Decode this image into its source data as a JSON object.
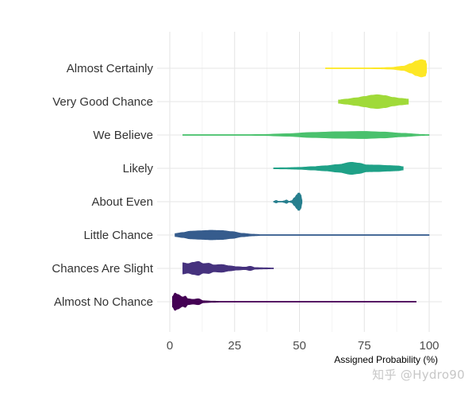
{
  "chart_data": {
    "type": "violin",
    "xlabel": "Assigned Probability (%)",
    "ylabel": "",
    "title": "",
    "xlim": [
      0,
      100
    ],
    "x_ticks": [
      0,
      25,
      50,
      75,
      100
    ],
    "grid": true,
    "legend": "none",
    "categories": [
      "Almost Certainly",
      "Very Good Chance",
      "We Believe",
      "Likely",
      "About Even",
      "Little Chance",
      "Chances Are Slight",
      "Almost No Chance"
    ],
    "series": [
      {
        "category": "Almost Certainly",
        "color": "#fde725",
        "min": 60,
        "max": 99,
        "density": [
          [
            60,
            0.02
          ],
          [
            70,
            0.03
          ],
          [
            80,
            0.06
          ],
          [
            85,
            0.1
          ],
          [
            90,
            0.25
          ],
          [
            93,
            0.55
          ],
          [
            95,
            0.85
          ],
          [
            97,
            1.0
          ],
          [
            98.5,
            0.9
          ],
          [
            99,
            0.5
          ]
        ]
      },
      {
        "category": "Very Good Chance",
        "color": "#a0da39",
        "min": 65,
        "max": 92,
        "density": [
          [
            65,
            0.2
          ],
          [
            68,
            0.3
          ],
          [
            72,
            0.45
          ],
          [
            75,
            0.6
          ],
          [
            78,
            0.75
          ],
          [
            80,
            0.8
          ],
          [
            83,
            0.7
          ],
          [
            86,
            0.5
          ],
          [
            89,
            0.38
          ],
          [
            92,
            0.3
          ]
        ]
      },
      {
        "category": "We Believe",
        "color": "#4ac16d",
        "min": 5,
        "max": 100,
        "density": [
          [
            5,
            0.03
          ],
          [
            20,
            0.04
          ],
          [
            35,
            0.06
          ],
          [
            45,
            0.15
          ],
          [
            55,
            0.3
          ],
          [
            65,
            0.38
          ],
          [
            75,
            0.42
          ],
          [
            82,
            0.35
          ],
          [
            90,
            0.2
          ],
          [
            97,
            0.08
          ],
          [
            100,
            0.03
          ]
        ]
      },
      {
        "category": "Likely",
        "color": "#1fa187",
        "min": 40,
        "max": 90,
        "density": [
          [
            40,
            0.06
          ],
          [
            45,
            0.08
          ],
          [
            50,
            0.12
          ],
          [
            55,
            0.2
          ],
          [
            60,
            0.3
          ],
          [
            65,
            0.45
          ],
          [
            70,
            0.7
          ],
          [
            73,
            0.6
          ],
          [
            76,
            0.4
          ],
          [
            80,
            0.38
          ],
          [
            85,
            0.32
          ],
          [
            88,
            0.28
          ],
          [
            90,
            0.2
          ]
        ]
      },
      {
        "category": "About Even",
        "color": "#277f8e",
        "min": 40,
        "max": 51,
        "density": [
          [
            40,
            0.05
          ],
          [
            41,
            0.15
          ],
          [
            42,
            0.05
          ],
          [
            43,
            0.03
          ],
          [
            44,
            0.1
          ],
          [
            45,
            0.2
          ],
          [
            46,
            0.05
          ],
          [
            47,
            0.12
          ],
          [
            48,
            0.45
          ],
          [
            49,
            0.8
          ],
          [
            49.5,
            1.0
          ],
          [
            50,
            1.0
          ],
          [
            50.5,
            0.8
          ],
          [
            51,
            0.2
          ]
        ]
      },
      {
        "category": "Little Chance",
        "color": "#365c8d",
        "min": 2,
        "max": 100,
        "density": [
          [
            2,
            0.18
          ],
          [
            5,
            0.3
          ],
          [
            8,
            0.45
          ],
          [
            12,
            0.5
          ],
          [
            16,
            0.55
          ],
          [
            20,
            0.52
          ],
          [
            24,
            0.4
          ],
          [
            28,
            0.2
          ],
          [
            32,
            0.1
          ],
          [
            36,
            0.04
          ],
          [
            45,
            0.03
          ],
          [
            60,
            0.02
          ],
          [
            80,
            0.02
          ],
          [
            100,
            0.02
          ]
        ]
      },
      {
        "category": "Chances Are Slight",
        "color": "#46327e",
        "min": 5,
        "max": 40,
        "density": [
          [
            5,
            0.65
          ],
          [
            7,
            0.55
          ],
          [
            9,
            0.7
          ],
          [
            11,
            0.8
          ],
          [
            13,
            0.55
          ],
          [
            15,
            0.6
          ],
          [
            17,
            0.4
          ],
          [
            20,
            0.45
          ],
          [
            23,
            0.3
          ],
          [
            26,
            0.2
          ],
          [
            29,
            0.15
          ],
          [
            31,
            0.25
          ],
          [
            33,
            0.1
          ],
          [
            36,
            0.08
          ],
          [
            40,
            0.05
          ]
        ]
      },
      {
        "category": "Almost No Chance",
        "color": "#440154",
        "min": 1,
        "max": 95,
        "density": [
          [
            1,
            0.6
          ],
          [
            2,
            1.0
          ],
          [
            3,
            0.85
          ],
          [
            5,
            0.55
          ],
          [
            6,
            0.65
          ],
          [
            7,
            0.35
          ],
          [
            9,
            0.28
          ],
          [
            11,
            0.35
          ],
          [
            13,
            0.12
          ],
          [
            16,
            0.08
          ],
          [
            20,
            0.05
          ],
          [
            30,
            0.03
          ],
          [
            50,
            0.02
          ],
          [
            70,
            0.02
          ],
          [
            90,
            0.03
          ],
          [
            95,
            0.03
          ]
        ]
      }
    ]
  },
  "watermark": "知乎 @Hydro90"
}
